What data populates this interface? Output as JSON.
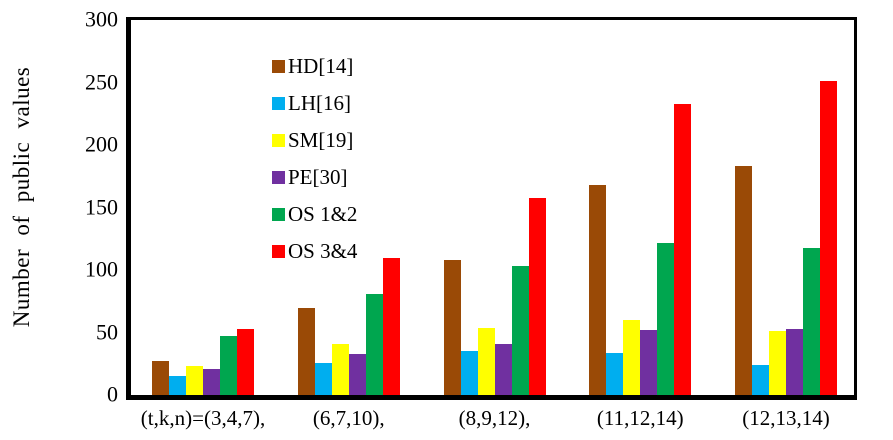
{
  "chart_data": {
    "type": "bar",
    "title": "",
    "ylabel": "Number of public values",
    "xlabel": "",
    "ylim": [
      0,
      300
    ],
    "ytick_labels": [
      "0",
      "50",
      "100",
      "150",
      "200",
      "250",
      "300"
    ],
    "grid": false,
    "legend_position": "top-left-inside",
    "categories": [
      "(t,k,n)=(3,4,7),",
      "(6,7,10),",
      "(8,9,12),",
      "(11,12,14)",
      "(12,13,14)"
    ],
    "series": [
      {
        "name": "HD[14]",
        "color": "#9A4A06",
        "values": [
          27,
          70,
          108,
          168,
          183
        ]
      },
      {
        "name": "LH[16]",
        "color": "#00AEEF",
        "values": [
          15,
          26,
          35,
          34,
          24
        ]
      },
      {
        "name": "SM[19]",
        "color": "#FFFF00",
        "values": [
          23,
          41,
          54,
          60,
          51
        ]
      },
      {
        "name": "PE[30]",
        "color": "#7030A0",
        "values": [
          21,
          33,
          41,
          52,
          53
        ]
      },
      {
        "name": "OS 1&2",
        "color": "#00A64F",
        "values": [
          47,
          81,
          103,
          122,
          118
        ]
      },
      {
        "name": "OS 3&4",
        "color": "#FF0000",
        "values": [
          53,
          110,
          158,
          233,
          251
        ]
      }
    ],
    "axis_color": "#000000",
    "background_color": "#FFFFFF"
  }
}
